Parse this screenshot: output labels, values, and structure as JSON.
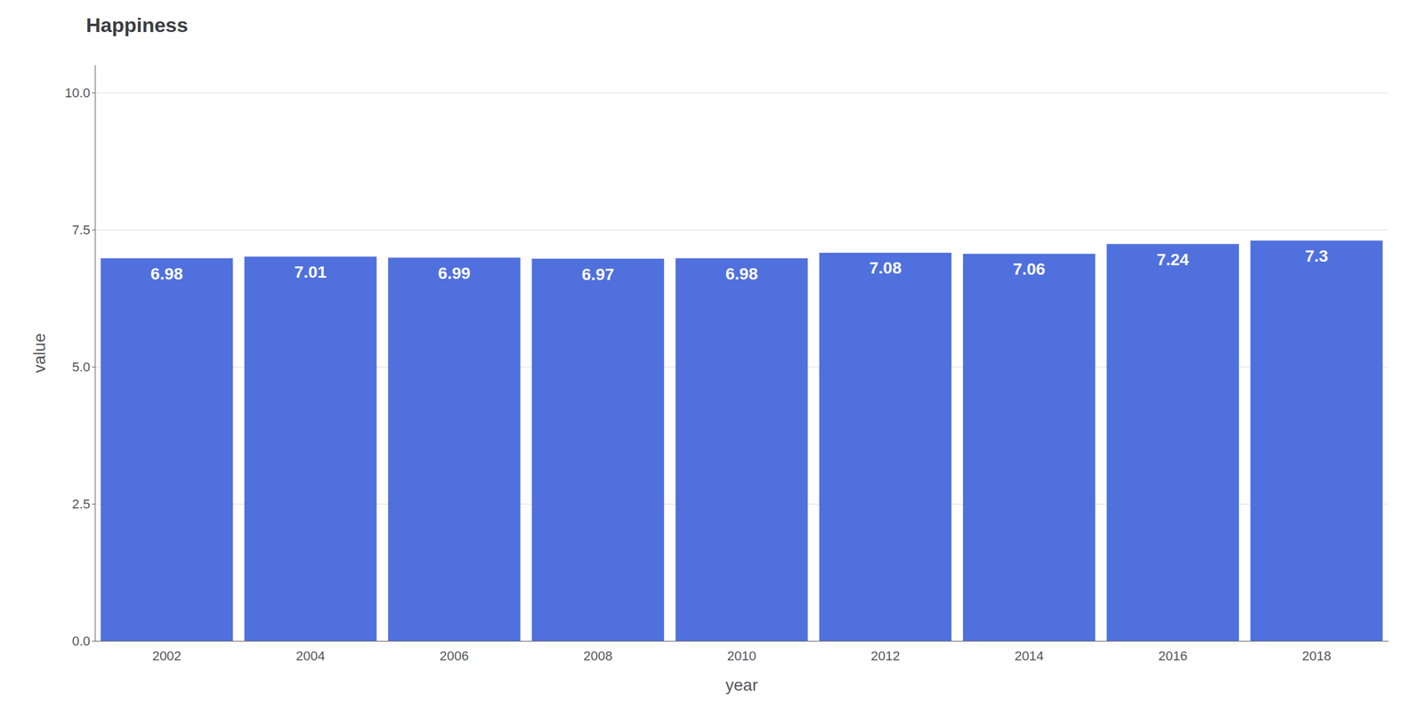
{
  "chart_data": {
    "type": "bar",
    "title": "Happiness",
    "xlabel": "year",
    "ylabel": "value",
    "categories": [
      "2002",
      "2004",
      "2006",
      "2008",
      "2010",
      "2012",
      "2014",
      "2016",
      "2018"
    ],
    "values": [
      6.98,
      7.01,
      6.99,
      6.97,
      6.98,
      7.08,
      7.06,
      7.24,
      7.3
    ],
    "ylim": [
      0,
      10.5
    ],
    "yticks": [
      {
        "value": 0.0,
        "label": "0.0"
      },
      2.5,
      {
        "value": 5.0,
        "label": "5.0"
      },
      7.5,
      {
        "value": 10.0,
        "label": "10.0"
      }
    ],
    "grid": true,
    "data_labels": true
  }
}
